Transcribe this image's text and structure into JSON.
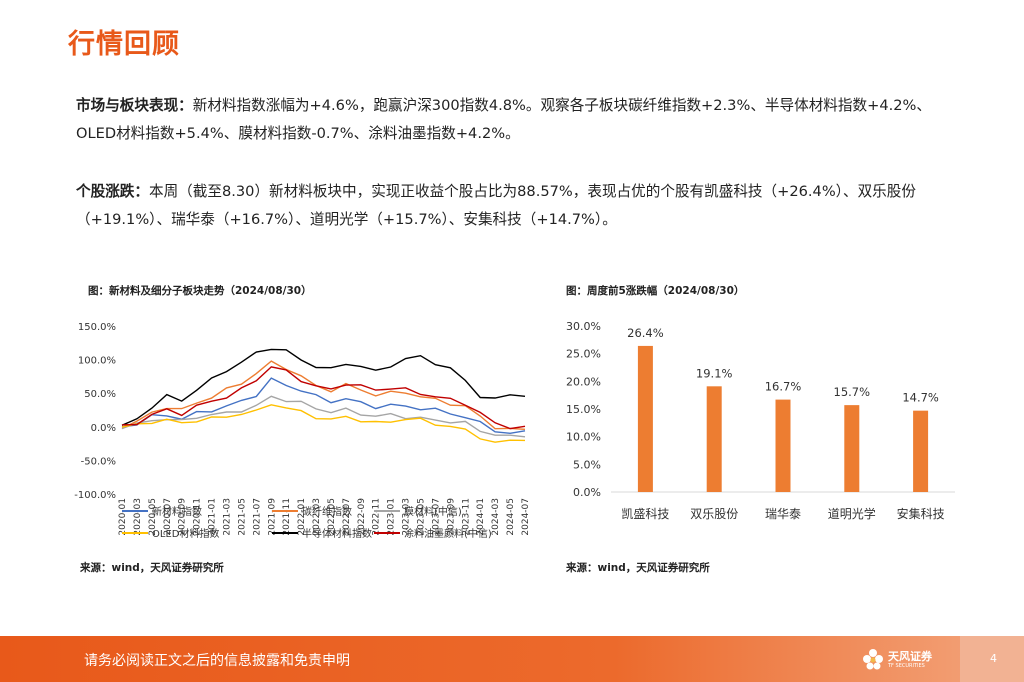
{
  "title": "行情回顾",
  "para1": {
    "bold": "市场与板块表现：",
    "text": "新材料指数涨幅为+4.6%，跑赢沪深300指数4.8%。观察各子板块碳纤维指数+2.3%、半导体材料指数+4.2%、OLED材料指数+5.4%、膜材料指数-0.7%、涂料油墨指数+4.2%。"
  },
  "para2": {
    "bold": "个股涨跌：",
    "text": "本周（截至8.30）新材料板块中，实现正收益个股占比为88.57%，表现占优的个股有凯盛科技（+26.4%）、双乐股份（+19.1%）、瑞华泰（+16.7%）、道明光学（+15.7%）、安集科技（+14.7%）。"
  },
  "chart1": {
    "caption": "图：新材料及细分子板块走势（2024/08/30）",
    "source": "来源：wind，天风证券研究所"
  },
  "chart2": {
    "caption": "图：周度前5涨跌幅（2024/08/30）",
    "source": "来源：wind，天风证券研究所"
  },
  "footer": {
    "disclaimer": "请务必阅读正文之后的信息披露和免责申明",
    "logo_text": "天风证券",
    "logo_sub": "TF SECURITIES",
    "page": "4"
  },
  "chart_data": [
    {
      "type": "line",
      "title": "",
      "y_ticks": [
        "150.0%",
        "100.0%",
        "50.0%",
        "0.0%",
        "-50.0%",
        "-100.0%"
      ],
      "ylim": [
        -100,
        150
      ],
      "x_ticks": [
        "2020-01",
        "2020-03",
        "2020-05",
        "2020-07",
        "2020-09",
        "2020-11",
        "2021-01",
        "2021-03",
        "2021-05",
        "2021-07",
        "2021-09",
        "2021-11",
        "2022-01",
        "2022-03",
        "2022-05",
        "2022-07",
        "2022-09",
        "2022-11",
        "2023-01",
        "2023-03",
        "2023-05",
        "2023-07",
        "2023-09",
        "2023-11",
        "2024-01",
        "2024-03",
        "2024-05",
        "2024-07"
      ],
      "series": [
        {
          "name": "新材料指数",
          "color": "#4472C4",
          "values": [
            0,
            5,
            15,
            18,
            12,
            20,
            25,
            30,
            38,
            48,
            70,
            62,
            55,
            45,
            38,
            42,
            35,
            30,
            32,
            30,
            28,
            25,
            20,
            15,
            5,
            -5,
            -10,
            -8
          ]
        },
        {
          "name": "碳纤维指数",
          "color": "#ED7D31",
          "values": [
            0,
            8,
            20,
            30,
            25,
            35,
            45,
            55,
            65,
            80,
            95,
            88,
            75,
            60,
            55,
            62,
            55,
            48,
            50,
            52,
            45,
            40,
            35,
            30,
            15,
            0,
            -5,
            -3
          ]
        },
        {
          "name": "膜材料(中信)",
          "color": "#A5A5A5",
          "values": [
            0,
            3,
            10,
            12,
            8,
            15,
            18,
            20,
            25,
            30,
            45,
            40,
            35,
            28,
            22,
            25,
            20,
            15,
            18,
            15,
            12,
            10,
            8,
            5,
            -5,
            -12,
            -15,
            -12
          ]
        },
        {
          "name": "OLED材料指数",
          "color": "#FFC000",
          "values": [
            0,
            2,
            8,
            10,
            5,
            10,
            12,
            15,
            20,
            22,
            35,
            28,
            22,
            15,
            10,
            15,
            10,
            5,
            8,
            12,
            10,
            5,
            0,
            -5,
            -15,
            -25,
            -20,
            -18
          ]
        },
        {
          "name": "半导体材料指数",
          "color": "#000000",
          "values": [
            0,
            12,
            30,
            45,
            40,
            55,
            70,
            85,
            95,
            110,
            118,
            112,
            100,
            90,
            85,
            95,
            90,
            82,
            92,
            100,
            105,
            95,
            85,
            70,
            45,
            40,
            50,
            45
          ]
        },
        {
          "name": "涂料油墨颜料(中信)",
          "color": "#C00000",
          "values": [
            0,
            6,
            18,
            25,
            20,
            30,
            38,
            45,
            55,
            70,
            90,
            82,
            70,
            60,
            55,
            65,
            60,
            55,
            58,
            55,
            50,
            45,
            40,
            35,
            20,
            5,
            0,
            -2
          ]
        }
      ]
    },
    {
      "type": "bar",
      "title": "",
      "categories": [
        "凯盛科技",
        "双乐股份",
        "瑞华泰",
        "道明光学",
        "安集科技"
      ],
      "values": [
        26.4,
        19.1,
        16.7,
        15.7,
        14.7
      ],
      "value_labels": [
        "26.4%",
        "19.1%",
        "16.7%",
        "15.7%",
        "14.7%"
      ],
      "y_ticks": [
        "30.0%",
        "25.0%",
        "20.0%",
        "15.0%",
        "10.0%",
        "5.0%",
        "0.0%"
      ],
      "ylim": [
        0,
        30
      ],
      "color": "#ED7D31"
    }
  ]
}
